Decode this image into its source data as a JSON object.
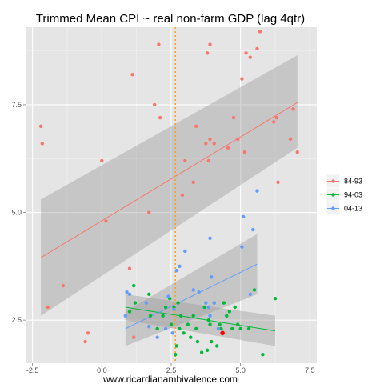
{
  "chart_data": {
    "type": "scatter",
    "title": "Trimmed Mean CPI ~ real non-farm GDP (lag 4qtr)",
    "xlabel": "www.ricardianambivalence.com",
    "ylabel": "",
    "xlim": [
      -2.5,
      7.5
    ],
    "ylim": [
      1.5,
      9.3
    ],
    "x_ticks": [
      -2.5,
      0.0,
      2.5,
      5.0,
      7.5
    ],
    "x_tick_labels": [
      "-2.5",
      "0.0",
      "2.5",
      "5.0",
      "7.5"
    ],
    "y_ticks": [
      2.5,
      5.0,
      7.5
    ],
    "y_tick_labels": [
      "2.5",
      "5.0",
      "7.5"
    ],
    "grid": true,
    "legend_position": "right",
    "vline": {
      "x": 2.65,
      "color": "#f5a623",
      "style": "dotted"
    },
    "highlight_point": {
      "x": 4.35,
      "y": 2.2,
      "color": "#ff0000"
    },
    "series": [
      {
        "name": "84-93",
        "color": "#f8766d",
        "x": [
          -2.2,
          -2.15,
          -1.4,
          -1.95,
          -0.6,
          -0.5,
          0.0,
          0.15,
          1.0,
          1.1,
          1.15,
          1.7,
          1.9,
          2.05,
          2.1,
          2.9,
          3.0,
          3.3,
          3.4,
          3.75,
          3.8,
          3.85,
          3.9,
          3.9,
          4.05,
          4.55,
          4.75,
          4.9,
          5.05,
          5.15,
          5.2,
          5.35,
          5.6,
          5.7,
          6.2,
          6.3,
          6.35,
          6.8,
          6.9,
          7.05
        ],
        "y": [
          7.0,
          6.6,
          3.3,
          2.8,
          2.0,
          2.2,
          6.2,
          4.8,
          3.7,
          8.2,
          2.1,
          5.0,
          7.5,
          8.9,
          7.2,
          5.4,
          6.2,
          5.7,
          7.0,
          6.6,
          8.7,
          6.2,
          8.9,
          6.7,
          6.6,
          6.5,
          7.2,
          6.7,
          8.1,
          6.4,
          8.7,
          8.6,
          8.8,
          9.2,
          7.1,
          7.2,
          5.7,
          6.7,
          7.4,
          6.4
        ]
      },
      {
        "name": "94-03",
        "color": "#00ba38",
        "x": [
          1.0,
          1.15,
          1.2,
          1.7,
          1.75,
          2.0,
          2.2,
          2.3,
          2.45,
          2.5,
          2.6,
          2.65,
          2.7,
          2.75,
          2.8,
          2.85,
          2.95,
          3.1,
          3.2,
          3.3,
          3.4,
          3.45,
          3.6,
          3.7,
          3.8,
          3.85,
          3.9,
          3.95,
          4.05,
          4.15,
          4.25,
          4.3,
          4.4,
          4.5,
          4.6,
          4.7,
          4.8,
          4.9,
          5.0,
          5.3,
          5.5,
          5.8,
          6.25
        ],
        "y": [
          2.7,
          3.3,
          2.9,
          3.1,
          2.6,
          2.3,
          2.6,
          2.8,
          3.0,
          2.4,
          2.8,
          1.7,
          1.9,
          2.9,
          2.3,
          2.6,
          2.2,
          2.4,
          2.1,
          2.6,
          2.3,
          2.0,
          1.75,
          2.8,
          1.8,
          2.5,
          2.4,
          2.0,
          2.9,
          1.9,
          2.4,
          2.3,
          2.9,
          2.6,
          2.7,
          2.3,
          2.8,
          2.4,
          2.3,
          2.3,
          3.2,
          1.7,
          3.0
        ]
      },
      {
        "name": "04-13",
        "color": "#619cff",
        "x": [
          0.85,
          0.9,
          1.0,
          1.6,
          1.7,
          2.0,
          2.3,
          2.4,
          2.55,
          2.6,
          2.7,
          2.8,
          3.0,
          3.3,
          3.5,
          3.75,
          3.85,
          3.9,
          3.9,
          3.95,
          4.05,
          4.2,
          5.05,
          5.1,
          5.35,
          5.45,
          5.6
        ],
        "y": [
          2.6,
          3.15,
          3.1,
          2.9,
          2.35,
          2.1,
          2.3,
          3.05,
          2.2,
          2.75,
          3.65,
          3.75,
          4.1,
          3.2,
          3.15,
          2.9,
          2.8,
          2.6,
          4.4,
          3.5,
          2.9,
          2.3,
          4.2,
          4.9,
          3.1,
          4.6,
          5.5
        ]
      }
    ],
    "fits": [
      {
        "series": "84-93",
        "color": "#f8766d",
        "x": [
          -2.2,
          7.05
        ],
        "y": [
          3.95,
          7.55
        ],
        "band_upper": [
          5.3,
          8.65
        ],
        "band_lower": [
          2.6,
          6.5
        ]
      },
      {
        "series": "94-03",
        "color": "#00ba38",
        "x": [
          0.85,
          6.25
        ],
        "y": [
          2.8,
          2.25
        ],
        "band_upper": [
          3.1,
          2.6
        ],
        "band_lower": [
          2.5,
          1.9
        ]
      },
      {
        "series": "04-13",
        "color": "#619cff",
        "x": [
          0.85,
          5.6
        ],
        "y": [
          2.3,
          3.8
        ],
        "band_upper": [
          2.7,
          4.5
        ],
        "band_lower": [
          1.9,
          3.1
        ]
      }
    ]
  }
}
